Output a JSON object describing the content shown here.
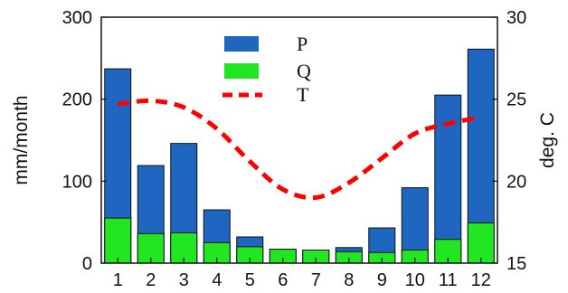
{
  "chart_data": {
    "type": "bar",
    "categories": [
      "1",
      "2",
      "3",
      "4",
      "5",
      "6",
      "7",
      "8",
      "9",
      "10",
      "11",
      "12"
    ],
    "series": [
      {
        "name": "P",
        "kind": "bar",
        "axis": "left",
        "color": "#1f66c0",
        "values": [
          237,
          119,
          146,
          65,
          32,
          17,
          15,
          19,
          43,
          92,
          205,
          261
        ]
      },
      {
        "name": "Q",
        "kind": "bar",
        "axis": "left",
        "color": "#22e622",
        "values": [
          55,
          36,
          37,
          25,
          20,
          17,
          16,
          14,
          13,
          16,
          29,
          49
        ]
      },
      {
        "name": "T",
        "kind": "line",
        "axis": "right",
        "color": "#ff0000",
        "style": "dashed",
        "values": [
          24.7,
          24.9,
          24.5,
          23.2,
          21.2,
          19.5,
          19.0,
          19.9,
          21.4,
          22.9,
          23.5,
          23.9
        ]
      }
    ],
    "ylabel": "mm/month",
    "y2label": "deg. C",
    "ylim": [
      0,
      300
    ],
    "y2lim": [
      15,
      30
    ],
    "yticks": [
      "0",
      "100",
      "200",
      "300"
    ],
    "y2ticks": [
      "15",
      "20",
      "25",
      "30"
    ],
    "grid": false,
    "legend_position": "top-center"
  }
}
